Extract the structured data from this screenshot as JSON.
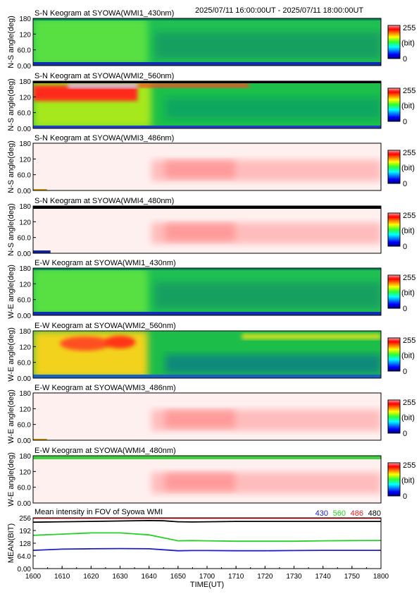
{
  "header": {
    "range": "2025/07/11 16:00:00UT - 2025/07/11 18:00:00UT"
  },
  "panels": [
    {
      "title": "S-N Keogram at SYOWA(WMI1_430nm)",
      "ylabel": "N-S angle(deg)",
      "style": "green_dim"
    },
    {
      "title": "S-N Keogram at SYOWA(WMI2_560nm)",
      "ylabel": "N-S angle(deg)",
      "style": "bright"
    },
    {
      "title": "S-N Keogram at SYOWA(WMI3_486nm)",
      "ylabel": "N-S angle(deg)",
      "style": "sat"
    },
    {
      "title": "S-N Keogram at SYOWA(WMI4_480nm)",
      "ylabel": "N-S angle(deg)",
      "style": "sat_dark"
    },
    {
      "title": "E-W Keogram at SYOWA(WMI1_430nm)",
      "ylabel": "W-E angle(deg)",
      "style": "green_dim"
    },
    {
      "title": "E-W Keogram at SYOWA(WMI2_560nm)",
      "ylabel": "W-E angle(deg)",
      "style": "bright_ew"
    },
    {
      "title": "E-W Keogram at SYOWA(WMI3_486nm)",
      "ylabel": "W-E angle(deg)",
      "style": "sat"
    },
    {
      "title": "E-W Keogram at SYOWA(WMI4_480nm)",
      "ylabel": "W-E angle(deg)",
      "style": "sat_green"
    }
  ],
  "keogram_axis": {
    "yticks": [
      "0.00",
      "60.0",
      "120",
      "180"
    ],
    "ylim": [
      0,
      180
    ]
  },
  "colorbar": {
    "max_label": "255",
    "unit_label": "(bit)",
    "min_label": "0"
  },
  "chart_data": {
    "type": "line",
    "title": "Mean intensity in FOV of Syowa WMI",
    "ylabel": "MEAN(BIT)",
    "xlabel": "TIME(UT)",
    "ylim": [
      0,
      256
    ],
    "yticks": [
      "0.00",
      "64.0",
      "128",
      "192",
      "256"
    ],
    "xticks": [
      "1600",
      "1610",
      "1620",
      "1630",
      "1640",
      "1650",
      "1700",
      "1710",
      "1720",
      "1730",
      "1740",
      "1750",
      "1800"
    ],
    "x": [
      0,
      10,
      20,
      30,
      40,
      45,
      50,
      55,
      60,
      70,
      80,
      90,
      100,
      110,
      120
    ],
    "series": [
      {
        "name": "430",
        "color": "#2020c8",
        "values": [
          92,
          98,
          100,
          101,
          100,
          95,
          90,
          91,
          91,
          90,
          90,
          91,
          92,
          92,
          92
        ]
      },
      {
        "name": "560",
        "color": "#28d028",
        "values": [
          168,
          174,
          180,
          180,
          170,
          155,
          140,
          141,
          140,
          138,
          138,
          138,
          140,
          141,
          142
        ]
      },
      {
        "name": "486",
        "color": "#e02020",
        "values": [
          254,
          254,
          254,
          254,
          254,
          254,
          254,
          254,
          254,
          254,
          254,
          254,
          254,
          254,
          254
        ]
      },
      {
        "name": "480",
        "color": "#000000",
        "values": [
          234,
          236,
          238,
          240,
          242,
          241,
          236,
          235,
          236,
          238,
          238,
          238,
          238,
          238,
          238
        ]
      }
    ]
  }
}
